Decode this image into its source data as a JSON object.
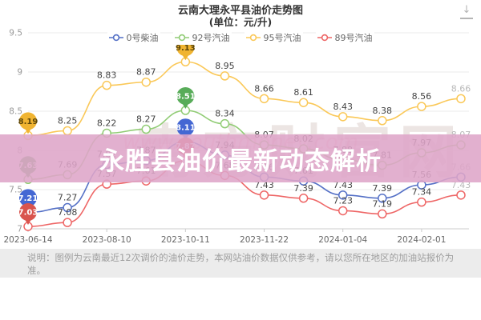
{
  "title": {
    "line1": "云南大理永平县油价走势图",
    "line2": "(单位：元/升)"
  },
  "icons": {
    "download_chart": "↓"
  },
  "legend": [
    {
      "label": "0号柴油",
      "color": "#5470c6"
    },
    {
      "label": "92号汽油",
      "color": "#91cc75"
    },
    {
      "label": "95号汽油",
      "color": "#fac858"
    },
    {
      "label": "89号汽油",
      "color": "#ee6666"
    }
  ],
  "banner": {
    "text": "永胜县油价最新动态解析"
  },
  "watermark": {
    "main": "南方财富网",
    "url": "www.southmoney.com"
  },
  "footer": {
    "text": "说明：图例为云南最近12次调价的油价走势，本网站油价数据仅供参考，请以您所在地区的加油站报价为准。"
  },
  "colors": {
    "grid": "#ebebeb",
    "axis_line": "#cccccc",
    "y_label": "#999999",
    "date_label": "#666666",
    "point_label": "#444444",
    "faded_label": "#b9b9b9"
  },
  "chart_data": {
    "type": "line",
    "title": "云南大理永平县油价走势图",
    "unit": "元/升",
    "x_tick_labels": [
      "2023-06-14",
      "2023-08-10",
      "2023-10-11",
      "2023-11-22",
      "2024-01-04",
      "2024-02-01"
    ],
    "x_tick_point_indices": [
      0,
      2,
      4,
      6,
      8,
      10
    ],
    "n_points": 12,
    "y_ticks": [
      "9.5",
      "9",
      "8.5",
      "8",
      "7.5",
      "7"
    ],
    "y_tick_values": [
      9.5,
      9.0,
      8.5,
      8.0,
      7.5,
      7.0
    ],
    "ylim": [
      7.0,
      9.5
    ],
    "grid": true,
    "legend_position": "top",
    "series": [
      {
        "name": "0号柴油",
        "color": "#5470c6",
        "badge_color": "#4467d3",
        "badge_text_color": "#ffffff",
        "values": [
          7.21,
          7.27,
          7.82,
          7.87,
          8.11,
          7.94,
          7.66,
          7.61,
          7.43,
          7.39,
          7.56,
          7.66
        ],
        "badge_points": [
          0,
          4
        ]
      },
      {
        "name": "92号汽油",
        "color": "#91cc75",
        "badge_color": "#58ac59",
        "badge_text_color": "#ffffff",
        "values": [
          7.63,
          7.69,
          8.22,
          8.27,
          8.51,
          8.34,
          8.07,
          8.02,
          7.88,
          7.81,
          7.97,
          8.07
        ],
        "badge_points": [
          0,
          4
        ]
      },
      {
        "name": "95号汽油",
        "color": "#fac858",
        "badge_color": "#f0b431",
        "badge_text_color": "#5e4709",
        "values": [
          8.19,
          8.25,
          8.83,
          8.87,
          9.13,
          8.95,
          8.66,
          8.61,
          8.43,
          8.38,
          8.56,
          8.66
        ],
        "badge_points": [
          0,
          4
        ]
      },
      {
        "name": "89号汽油",
        "color": "#ee6666",
        "badge_color": "#d9544e",
        "badge_text_color": "#ffffff",
        "values": [
          7.03,
          7.08,
          7.57,
          7.61,
          7.87,
          7.68,
          7.43,
          7.39,
          7.23,
          7.19,
          7.34,
          7.43
        ],
        "badge_points": [
          0,
          4
        ]
      }
    ]
  }
}
